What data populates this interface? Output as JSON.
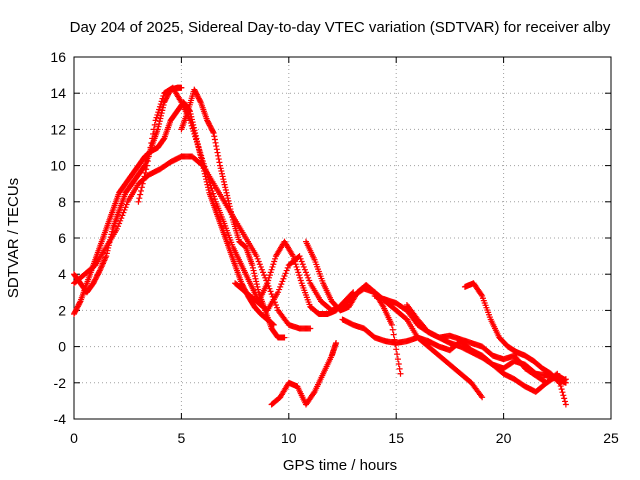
{
  "chart_data": {
    "type": "scatter",
    "title": "Day 204 of 2025, Sidereal Day-to-day VTEC variation (SDTVAR) for receiver alby",
    "xlabel": "GPS time / hours",
    "ylabel": "SDTVAR / TECUs",
    "xlim": [
      0,
      25
    ],
    "ylim": [
      -4,
      16
    ],
    "x_ticks": [
      0,
      5,
      10,
      15,
      20,
      25
    ],
    "y_ticks": [
      -4,
      -2,
      0,
      2,
      4,
      6,
      8,
      10,
      12,
      14,
      16
    ],
    "grid": true,
    "marker": "+",
    "color": "#ff0000",
    "series": [
      {
        "name": "track-1",
        "x": [
          0.0,
          0.3,
          0.6,
          0.9,
          1.2,
          1.5,
          1.8,
          2.1,
          2.4,
          2.7,
          3.0,
          3.3,
          3.6,
          3.9,
          4.2,
          4.5,
          4.8,
          5.0
        ],
        "y": [
          4.0,
          3.5,
          3.0,
          3.5,
          4.2,
          5.0,
          6.5,
          7.5,
          8.5,
          9.0,
          9.5,
          10.0,
          11.0,
          12.0,
          13.5,
          14.2,
          14.3,
          14.3
        ]
      },
      {
        "name": "track-2",
        "x": [
          0.0,
          0.3,
          0.6,
          0.9,
          1.2,
          1.5,
          1.8,
          2.1,
          2.4,
          2.7,
          3.0,
          3.3,
          3.6,
          3.9,
          4.2,
          4.5,
          4.8,
          5.1,
          5.4,
          5.7,
          6.0,
          6.3,
          6.6,
          6.9,
          7.2,
          7.5,
          7.8,
          8.1,
          8.4,
          8.7,
          9.0,
          9.3
        ],
        "y": [
          1.8,
          2.5,
          3.5,
          4.5,
          5.5,
          6.5,
          7.5,
          8.5,
          9.0,
          9.5,
          10.0,
          10.5,
          10.8,
          11.0,
          11.5,
          12.5,
          13.0,
          13.5,
          13.0,
          11.5,
          10.0,
          8.5,
          7.5,
          6.5,
          5.5,
          4.5,
          3.5,
          2.8,
          2.2,
          1.8,
          1.5,
          1.2
        ]
      },
      {
        "name": "track-3",
        "x": [
          0.0,
          0.5,
          1.0,
          1.5,
          2.0,
          2.5,
          3.0,
          3.5,
          4.0,
          4.5,
          5.0,
          5.5,
          6.0,
          6.5,
          7.0,
          7.5,
          8.0,
          8.5,
          9.0,
          9.5,
          10.0,
          10.5,
          11.0
        ],
        "y": [
          3.5,
          4.0,
          4.5,
          5.5,
          6.5,
          8.0,
          9.0,
          9.5,
          9.8,
          10.2,
          10.5,
          10.5,
          10.0,
          9.0,
          8.0,
          7.0,
          6.0,
          5.0,
          3.5,
          2.0,
          1.2,
          1.0,
          1.0
        ]
      },
      {
        "name": "track-4",
        "x": [
          3.0,
          3.4,
          3.8,
          4.2,
          4.6,
          5.0,
          5.4,
          5.8,
          6.2,
          6.6,
          7.0,
          7.4,
          7.8,
          8.2,
          8.6,
          9.0,
          9.4,
          9.8,
          10.2,
          10.6,
          11.0,
          11.4,
          11.8,
          12.2,
          12.6,
          13.0
        ],
        "y": [
          8.0,
          10.0,
          12.5,
          14.0,
          14.3,
          13.5,
          12.5,
          11.0,
          9.5,
          8.0,
          6.8,
          5.5,
          4.5,
          3.5,
          2.5,
          3.5,
          5.0,
          5.8,
          5.0,
          3.5,
          2.2,
          1.8,
          1.8,
          2.0,
          2.5,
          3.0
        ]
      },
      {
        "name": "track-5",
        "x": [
          5.0,
          5.3,
          5.6,
          5.9,
          6.2,
          6.5,
          6.8,
          7.1,
          7.4,
          7.7,
          8.0,
          8.3,
          8.6,
          8.9,
          9.2,
          9.5,
          9.8
        ],
        "y": [
          12.0,
          13.0,
          14.2,
          13.5,
          12.5,
          11.8,
          10.0,
          8.5,
          7.0,
          5.8,
          5.5,
          4.5,
          3.0,
          2.0,
          1.0,
          0.5,
          0.5
        ]
      },
      {
        "name": "track-6",
        "x": [
          7.5,
          8.0,
          8.5,
          9.0,
          9.5,
          10.0,
          10.5,
          11.0,
          11.5,
          12.0,
          12.5,
          13.0,
          13.5,
          14.0,
          14.5,
          15.0,
          15.5,
          16.0,
          16.5,
          17.0,
          17.5,
          18.0,
          18.5,
          19.0
        ],
        "y": [
          3.5,
          3.0,
          2.5,
          2.0,
          3.0,
          4.5,
          5.0,
          3.5,
          2.5,
          2.0,
          2.2,
          2.8,
          3.2,
          3.0,
          2.5,
          2.0,
          1.5,
          0.5,
          0.0,
          -0.5,
          -1.0,
          -1.5,
          -2.0,
          -2.8
        ]
      },
      {
        "name": "track-7",
        "x": [
          9.2,
          9.6,
          10.0,
          10.4,
          10.8,
          11.2,
          11.6,
          12.0,
          12.2
        ],
        "y": [
          -3.2,
          -2.8,
          -2.0,
          -2.2,
          -3.2,
          -2.5,
          -1.5,
          -0.5,
          0.2
        ]
      },
      {
        "name": "track-8",
        "x": [
          10.8,
          11.2,
          11.6,
          12.0,
          12.4,
          12.8,
          13.2,
          13.6,
          14.0,
          14.4,
          14.8,
          15.2
        ],
        "y": [
          5.8,
          4.8,
          3.5,
          2.5,
          2.0,
          2.2,
          3.0,
          3.4,
          3.0,
          2.2,
          1.2,
          -1.5
        ]
      },
      {
        "name": "track-9",
        "x": [
          12.5,
          13.0,
          13.5,
          14.0,
          14.5,
          15.0,
          15.5,
          16.0,
          16.5,
          17.0,
          17.5,
          18.0,
          18.5,
          19.0,
          19.5,
          20.0,
          20.5,
          21.0,
          21.5,
          22.0,
          22.5,
          22.9
        ],
        "y": [
          1.5,
          1.2,
          1.0,
          0.5,
          0.3,
          0.2,
          0.3,
          0.5,
          0.3,
          0.0,
          -0.2,
          0.3,
          -0.2,
          -0.5,
          -1.0,
          -1.5,
          -1.8,
          -2.2,
          -2.5,
          -2.0,
          -1.5,
          -3.2
        ]
      },
      {
        "name": "track-10",
        "x": [
          14.0,
          14.5,
          15.0,
          15.5,
          16.0,
          16.5,
          17.0,
          17.5,
          18.0,
          18.5,
          19.0,
          19.5,
          20.0,
          20.5,
          21.0,
          21.5,
          22.0,
          22.5,
          22.9
        ],
        "y": [
          2.8,
          2.6,
          2.4,
          2.0,
          1.2,
          0.8,
          0.5,
          0.2,
          0.0,
          -0.3,
          -0.6,
          -1.0,
          -1.2,
          -0.8,
          -1.0,
          -1.5,
          -1.6,
          -1.8,
          -2.0
        ]
      },
      {
        "name": "track-11",
        "x": [
          15.5,
          16.0,
          16.5,
          17.0,
          17.5,
          18.0,
          18.5,
          19.0,
          19.5,
          20.0,
          20.5,
          21.0,
          21.5,
          22.0,
          22.5,
          22.8
        ],
        "y": [
          2.3,
          1.5,
          0.8,
          0.5,
          0.6,
          0.4,
          0.2,
          0.0,
          -0.5,
          -0.7,
          -0.5,
          -1.2,
          -1.6,
          -2.0,
          -1.6,
          -1.8
        ]
      },
      {
        "name": "track-12",
        "x": [
          18.2,
          18.6,
          19.0,
          19.4,
          19.8,
          20.2,
          20.6,
          21.0,
          21.4,
          21.8,
          22.2,
          22.6,
          22.9
        ],
        "y": [
          3.3,
          3.5,
          2.8,
          1.5,
          0.5,
          0.0,
          -0.3,
          -0.5,
          -0.8,
          -1.2,
          -1.5,
          -2.0,
          -1.8
        ]
      }
    ]
  }
}
